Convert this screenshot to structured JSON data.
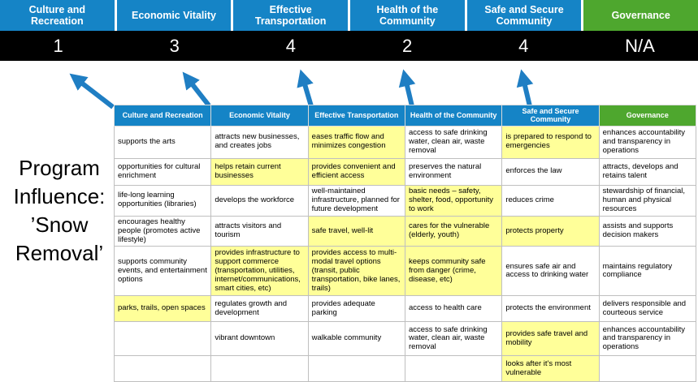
{
  "colors": {
    "header_blue": "#1584C6",
    "header_green": "#4EA72E",
    "highlight_yellow": "#FFFF99",
    "score_bar_black": "#000000",
    "arrow_blue": "#1F7EC3"
  },
  "banner": {
    "categories": [
      {
        "label": "Culture and Recreation",
        "score": "1",
        "color": "#1584C6"
      },
      {
        "label": "Economic Vitality",
        "score": "3",
        "color": "#1584C6"
      },
      {
        "label": "Effective Transportation",
        "score": "4",
        "color": "#1584C6"
      },
      {
        "label": "Health of the Community",
        "score": "2",
        "color": "#1584C6"
      },
      {
        "label": "Safe and Secure Community",
        "score": "4",
        "color": "#1584C6"
      },
      {
        "label": "Governance",
        "score": "N/A",
        "color": "#4EA72E"
      }
    ]
  },
  "program_label": "Program Influence: ’Snow Removal’",
  "table": {
    "headers": [
      "Culture and Recreation",
      "Economic Vitality",
      "Effective Transportation",
      "Health of the Community",
      "Safe and Secure Community",
      "Governance"
    ],
    "rows": [
      [
        {
          "text": "supports the arts",
          "highlight": false
        },
        {
          "text": "attracts new businesses, and creates jobs",
          "highlight": false
        },
        {
          "text": "eases traffic flow and minimizes congestion",
          "highlight": true
        },
        {
          "text": "access to safe drinking water, clean air, waste removal",
          "highlight": false
        },
        {
          "text": "is prepared to respond to emergencies",
          "highlight": true
        },
        {
          "text": "enhances accountability and transparency in operations",
          "highlight": false
        }
      ],
      [
        {
          "text": "opportunities for cultural enrichment",
          "highlight": false
        },
        {
          "text": "helps retain current businesses",
          "highlight": true
        },
        {
          "text": "provides convenient and efficient access",
          "highlight": true
        },
        {
          "text": "preserves the natural environment",
          "highlight": false
        },
        {
          "text": "enforces the law",
          "highlight": false
        },
        {
          "text": "attracts, develops and retains talent",
          "highlight": false
        }
      ],
      [
        {
          "text": "life-long learning opportunities (libraries)",
          "highlight": false
        },
        {
          "text": "develops the workforce",
          "highlight": false
        },
        {
          "text": "well-maintained infrastructure, planned for future development",
          "highlight": false
        },
        {
          "text": "basic needs – safety, shelter, food, opportunity to work",
          "highlight": true
        },
        {
          "text": "reduces crime",
          "highlight": false
        },
        {
          "text": "stewardship of financial, human and physical resources",
          "highlight": false
        }
      ],
      [
        {
          "text": "encourages healthy people (promotes active lifestyle)",
          "highlight": false
        },
        {
          "text": "attracts visitors and tourism",
          "highlight": false
        },
        {
          "text": "safe travel, well-lit",
          "highlight": true
        },
        {
          "text": "cares for the vulnerable (elderly, youth)",
          "highlight": true
        },
        {
          "text": "protects property",
          "highlight": true
        },
        {
          "text": "assists and supports decision makers",
          "highlight": false
        }
      ],
      [
        {
          "text": "supports community events, and entertainment options",
          "highlight": false
        },
        {
          "text": "provides infrastructure to support commerce (transportation, utilities, internet/communications, smart cities, etc)",
          "highlight": true
        },
        {
          "text": "provides access to multi-modal travel options (transit, public transportation, bike lanes, trails)",
          "highlight": true
        },
        {
          "text": "keeps community safe from danger (crime, disease, etc)",
          "highlight": true
        },
        {
          "text": "ensures safe air and access to drinking water",
          "highlight": false
        },
        {
          "text": "maintains regulatory compliance",
          "highlight": false
        }
      ],
      [
        {
          "text": "parks, trails, open spaces",
          "highlight": true
        },
        {
          "text": "regulates growth and development",
          "highlight": false
        },
        {
          "text": "provides adequate parking",
          "highlight": false
        },
        {
          "text": "access to health care",
          "highlight": false
        },
        {
          "text": "protects the environment",
          "highlight": false
        },
        {
          "text": "delivers responsible and courteous service",
          "highlight": false
        }
      ],
      [
        {
          "text": "",
          "highlight": false
        },
        {
          "text": "vibrant downtown",
          "highlight": false
        },
        {
          "text": "walkable community",
          "highlight": false
        },
        {
          "text": "access to safe drinking water, clean air, waste removal",
          "highlight": false
        },
        {
          "text": "provides safe travel and mobility",
          "highlight": true
        },
        {
          "text": "enhances accountability and transparency in operations",
          "highlight": false
        }
      ],
      [
        {
          "text": "",
          "highlight": false
        },
        {
          "text": "",
          "highlight": false
        },
        {
          "text": "",
          "highlight": false
        },
        {
          "text": "",
          "highlight": false
        },
        {
          "text": "looks after it's most vulnerable",
          "highlight": true
        },
        {
          "text": "",
          "highlight": false
        }
      ]
    ]
  }
}
